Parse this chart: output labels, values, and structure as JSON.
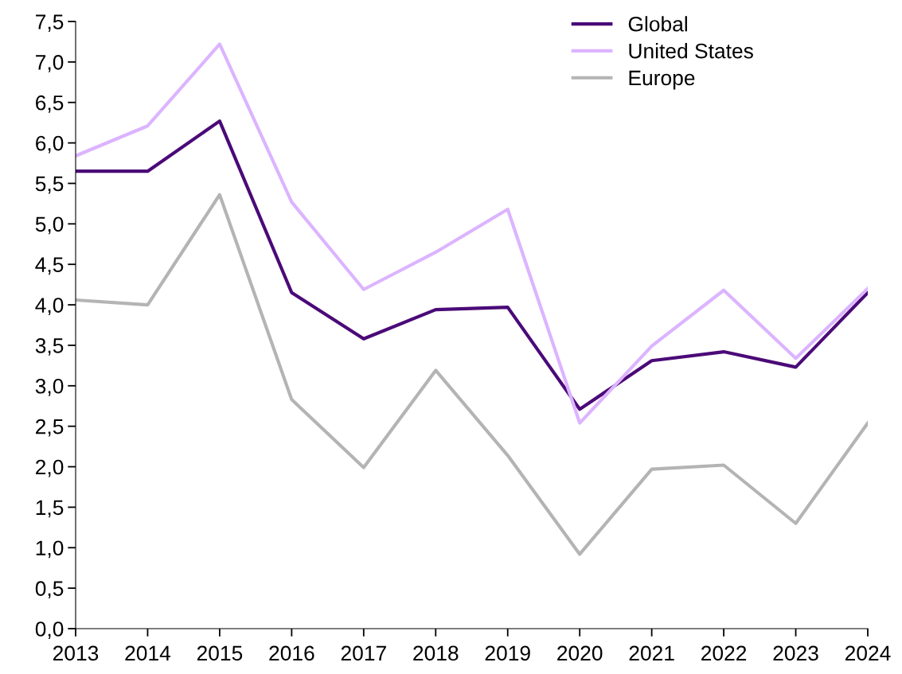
{
  "chart_data": {
    "type": "line",
    "categories": [
      "2013",
      "2014",
      "2015",
      "2016",
      "2017",
      "2018",
      "2019",
      "2020",
      "2021",
      "2022",
      "2023",
      "2024"
    ],
    "series": [
      {
        "name": "Global",
        "color": "#4b0a78",
        "values": [
          5.65,
          5.65,
          6.27,
          4.15,
          3.58,
          3.94,
          3.97,
          2.71,
          3.31,
          3.42,
          3.23,
          4.15
        ]
      },
      {
        "name": "United States",
        "color": "#dcb4ff",
        "values": [
          5.84,
          6.21,
          7.22,
          5.27,
          4.19,
          4.65,
          5.18,
          2.54,
          3.49,
          4.18,
          3.34,
          4.2
        ]
      },
      {
        "name": "Europe",
        "color": "#b4b4b4",
        "values": [
          4.06,
          4.0,
          5.36,
          2.83,
          1.99,
          3.19,
          2.14,
          0.92,
          1.97,
          2.02,
          1.3,
          2.54
        ]
      }
    ],
    "ylim": [
      0,
      7.5
    ],
    "yticks": [
      {
        "value": 0,
        "label": "0,0"
      },
      {
        "value": 0.5,
        "label": "0,5"
      },
      {
        "value": 1,
        "label": "1,0"
      },
      {
        "value": 1.5,
        "label": "1,5"
      },
      {
        "value": 2,
        "label": "2,0"
      },
      {
        "value": 2.5,
        "label": "2,5"
      },
      {
        "value": 3,
        "label": "3,0"
      },
      {
        "value": 3.5,
        "label": "3,5"
      },
      {
        "value": 4,
        "label": "4,0"
      },
      {
        "value": 4.5,
        "label": "4,5"
      },
      {
        "value": 5,
        "label": "5,0"
      },
      {
        "value": 5.5,
        "label": "5,5"
      },
      {
        "value": 6,
        "label": "6,0"
      },
      {
        "value": 6.5,
        "label": "6,5"
      },
      {
        "value": 7,
        "label": "7,0"
      },
      {
        "value": 7.5,
        "label": "7,5"
      }
    ],
    "grid": false,
    "legend": "top right",
    "marker": "none",
    "line_style": "solid"
  }
}
